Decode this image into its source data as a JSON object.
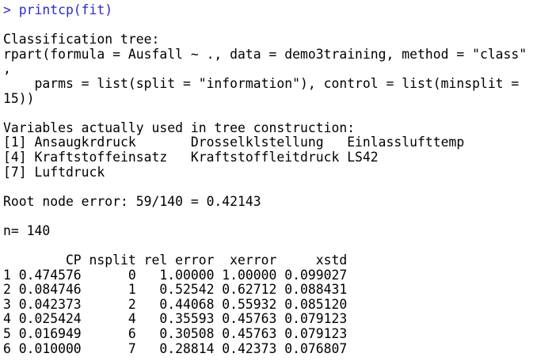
{
  "colors": {
    "background": "#ffffff",
    "input_text": "#2b2bd5",
    "output_text": "#000000"
  },
  "console": {
    "input": "> printcp(fit)",
    "classification_tree": {
      "heading": "Classification tree:",
      "call_lines": [
        "rpart(formula = Ausfall ~ ., data = demo3training, method = \"class\"",
        ",",
        "    parms = list(split = \"information\"), control = list(minsplit =",
        "15))"
      ]
    },
    "variables": {
      "heading": "Variables actually used in tree construction:",
      "rows": [
        "[1] Ansaugkrdruck       Drosselklstellung   Einlasslufttemp",
        "[4] Kraftstoffeinsatz   Kraftstoffleitdruck LS42",
        "[7] Luftdruck"
      ],
      "names": [
        "Ansaugkrdruck",
        "Drosselklstellung",
        "Einlasslufttemp",
        "Kraftstoffeinsatz",
        "Kraftstoffleitdruck",
        "LS42",
        "Luftdruck"
      ]
    },
    "root_node_error": "Root node error: 59/140 = 0.42143",
    "sample_size": "n= 140",
    "cp_table": {
      "header_line": "        CP nsplit rel error  xerror     xstd",
      "columns": [
        "CP",
        "nsplit",
        "rel error",
        "xerror",
        "xstd"
      ],
      "row_lines": [
        "1 0.474576      0   1.00000 1.00000 0.099027",
        "2 0.084746      1   0.52542 0.62712 0.088431",
        "3 0.042373      2   0.44068 0.55932 0.085120",
        "4 0.025424      4   0.35593 0.45763 0.079123",
        "5 0.016949      6   0.30508 0.45763 0.079123",
        "6 0.010000      7   0.28814 0.42373 0.076807"
      ],
      "values": [
        {
          "row": 1,
          "CP": 0.474576,
          "nsplit": 0,
          "rel_error": 1.0,
          "xerror": 1.0,
          "xstd": 0.099027
        },
        {
          "row": 2,
          "CP": 0.084746,
          "nsplit": 1,
          "rel_error": 0.52542,
          "xerror": 0.62712,
          "xstd": 0.088431
        },
        {
          "row": 3,
          "CP": 0.042373,
          "nsplit": 2,
          "rel_error": 0.44068,
          "xerror": 0.55932,
          "xstd": 0.08512
        },
        {
          "row": 4,
          "CP": 0.025424,
          "nsplit": 4,
          "rel_error": 0.35593,
          "xerror": 0.45763,
          "xstd": 0.079123
        },
        {
          "row": 5,
          "CP": 0.016949,
          "nsplit": 6,
          "rel_error": 0.30508,
          "xerror": 0.45763,
          "xstd": 0.079123
        },
        {
          "row": 6,
          "CP": 0.01,
          "nsplit": 7,
          "rel_error": 0.28814,
          "xerror": 0.42373,
          "xstd": 0.076807
        }
      ]
    }
  }
}
